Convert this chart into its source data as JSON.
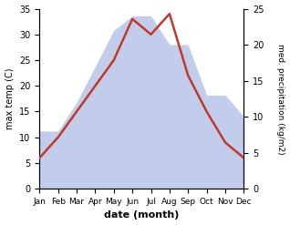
{
  "months": [
    "Jan",
    "Feb",
    "Mar",
    "Apr",
    "May",
    "Jun",
    "Jul",
    "Aug",
    "Sep",
    "Oct",
    "Nov",
    "Dec"
  ],
  "month_indices": [
    1,
    2,
    3,
    4,
    5,
    6,
    7,
    8,
    9,
    10,
    11,
    12
  ],
  "temperature": [
    6,
    10,
    15,
    20,
    25,
    33,
    30,
    34,
    22,
    15,
    9,
    6
  ],
  "precipitation": [
    8,
    8,
    12,
    17,
    22,
    24,
    24,
    20,
    20,
    13,
    13,
    10
  ],
  "temp_color": "#c0392b",
  "precip_color": "#b8c4e8",
  "ylabel_left": "max temp (C)",
  "ylabel_right": "med. precipitation (kg/m2)",
  "xlabel": "date (month)",
  "ylim_left": [
    0,
    35
  ],
  "ylim_right": [
    0,
    25
  ],
  "temp_linewidth": 1.8,
  "bg_color": "#ffffff"
}
